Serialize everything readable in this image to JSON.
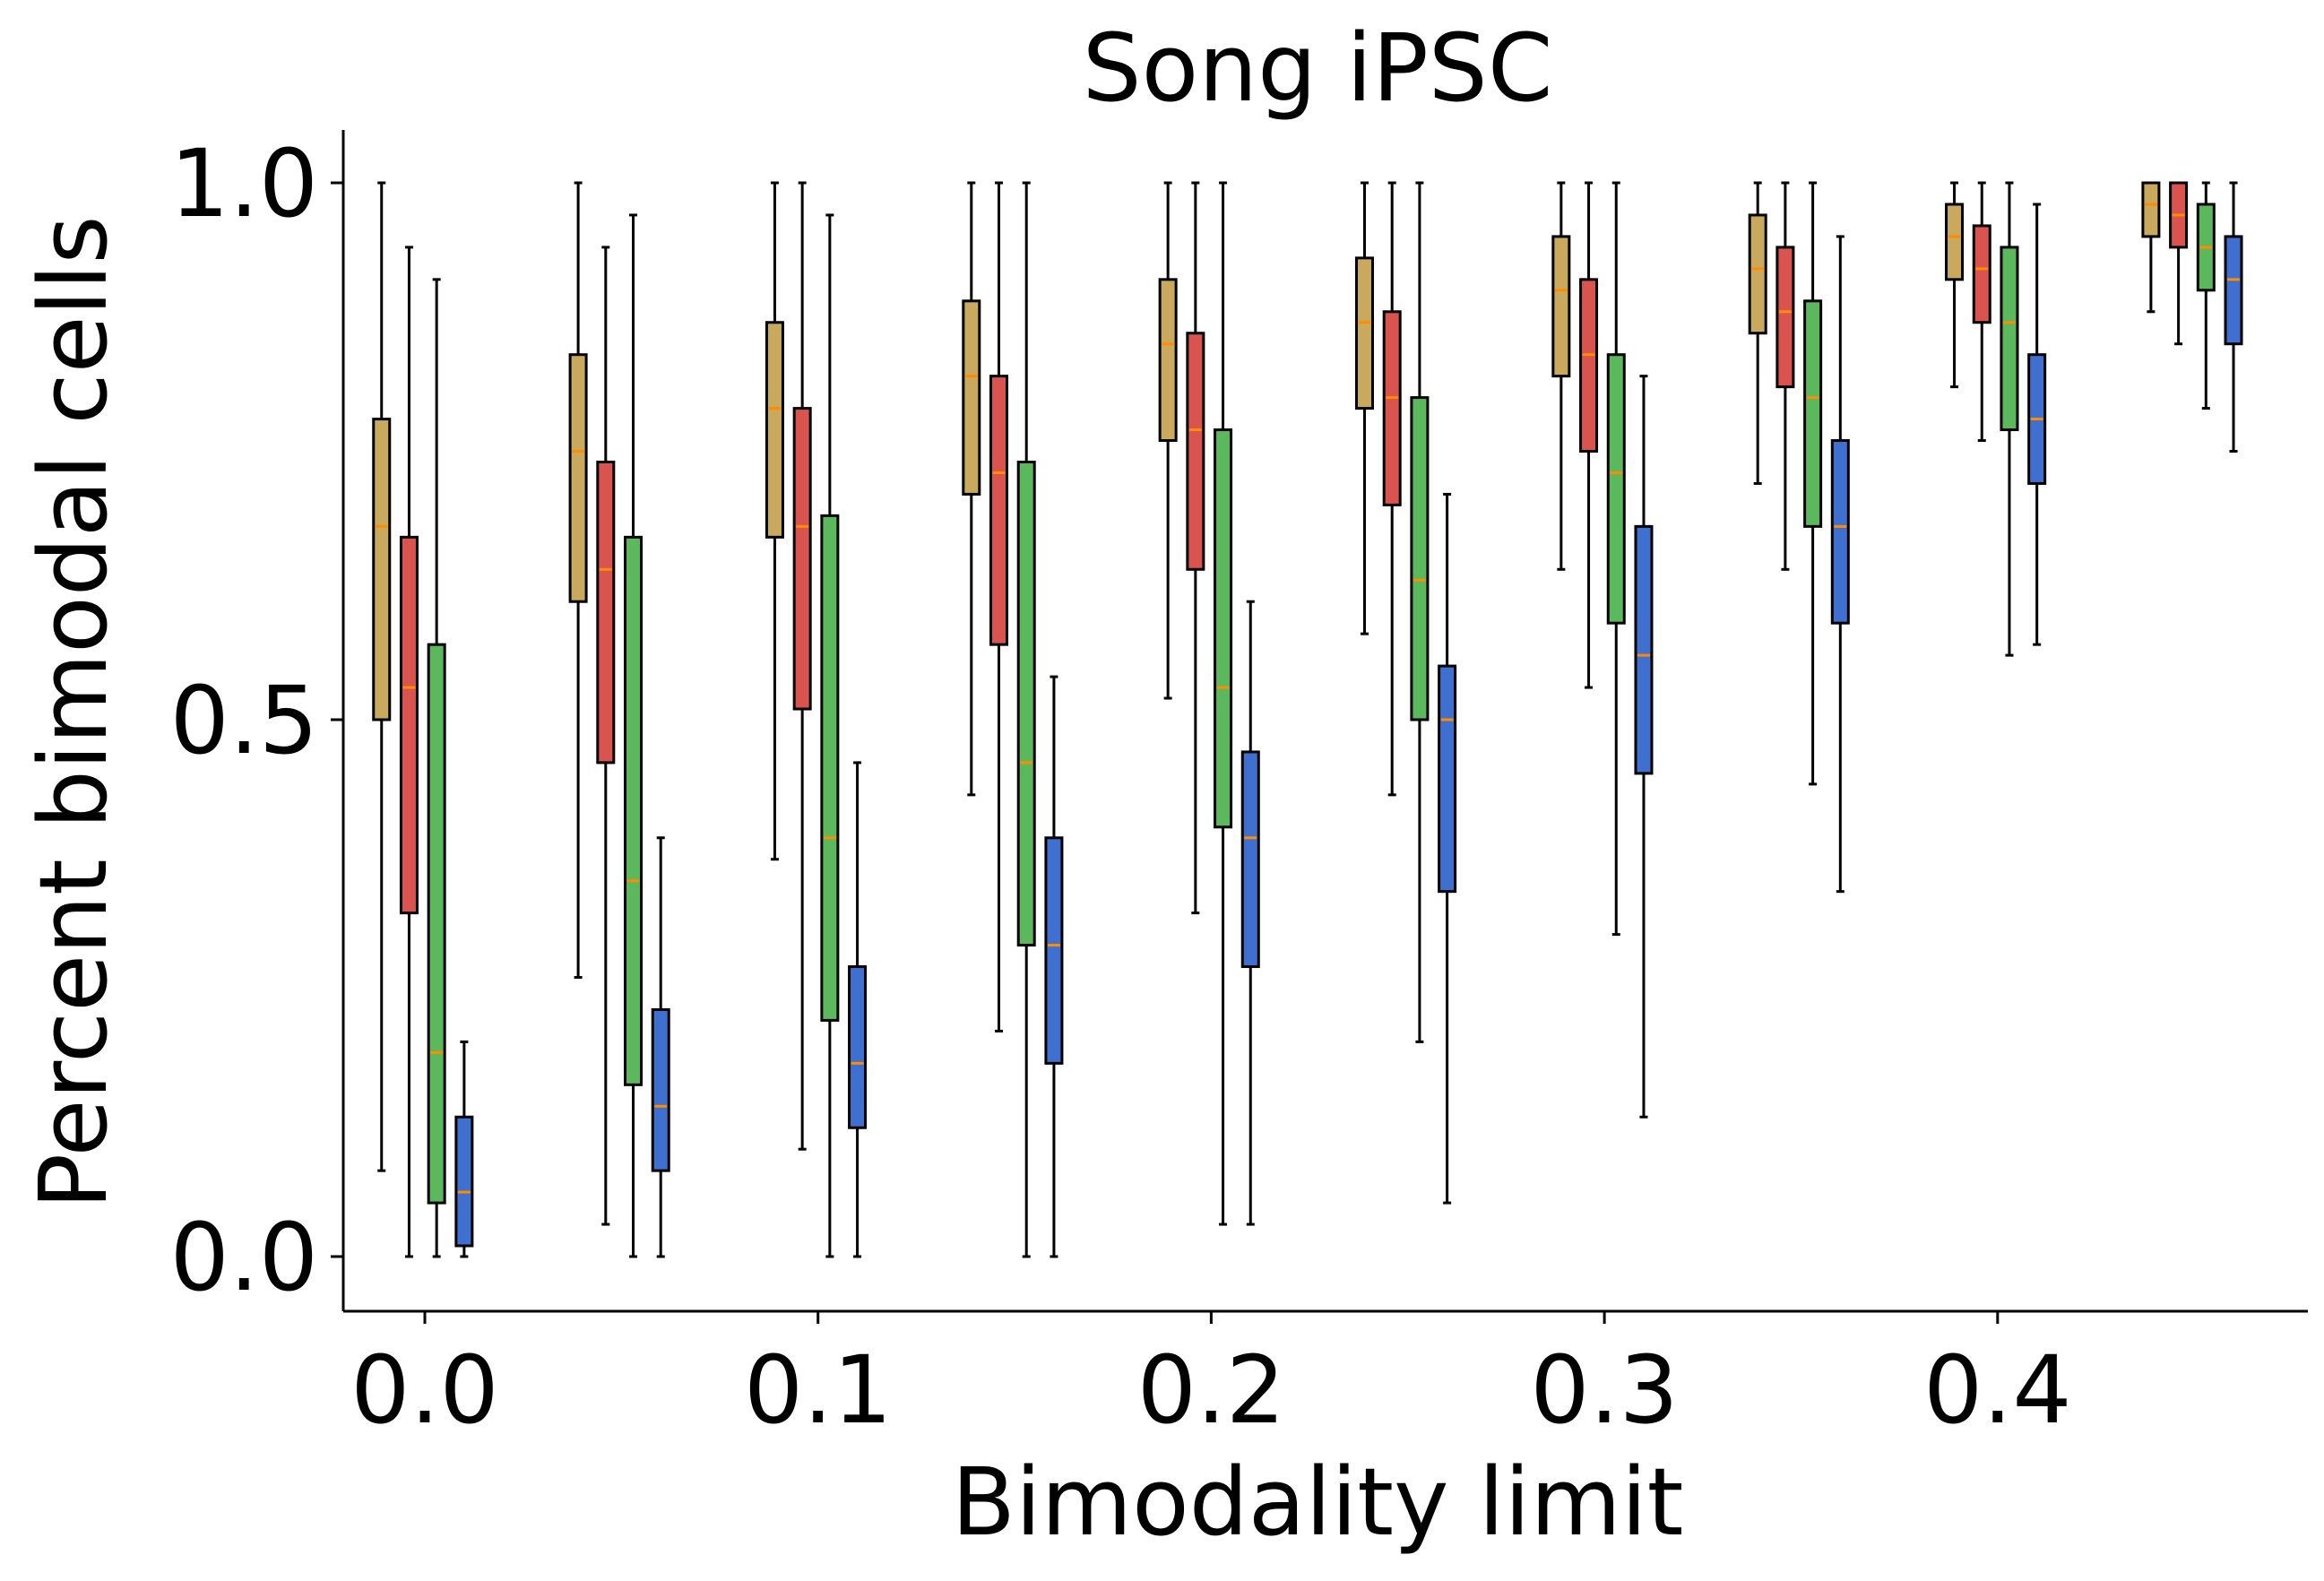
{
  "chart_data": {
    "type": "boxplot",
    "title": "Song iPSC",
    "xlabel": "Bimodality limit",
    "ylabel": "Percent bimodal cells",
    "xlim": [
      -0.021,
      0.479
    ],
    "ylim": [
      -0.05,
      1.05
    ],
    "x_ticks": [
      "0.0",
      "0.1",
      "0.2",
      "0.3",
      "0.4"
    ],
    "y_ticks": [
      "0.0",
      "0.5",
      "1.0"
    ],
    "grid": false,
    "legend": "none",
    "median_color": "#ff8c00",
    "series": [
      {
        "color": "#c8a95e",
        "boxes": [
          {
            "x": -0.011,
            "whislo": 0.08,
            "q1": 0.5,
            "med": 0.68,
            "q3": 0.78,
            "whishi": 1.0
          },
          {
            "x": 0.039,
            "whislo": 0.26,
            "q1": 0.61,
            "med": 0.75,
            "q3": 0.84,
            "whishi": 1.0
          },
          {
            "x": 0.089,
            "whislo": 0.37,
            "q1": 0.67,
            "med": 0.79,
            "q3": 0.87,
            "whishi": 1.0
          },
          {
            "x": 0.139,
            "whislo": 0.43,
            "q1": 0.71,
            "med": 0.82,
            "q3": 0.89,
            "whishi": 1.0
          },
          {
            "x": 0.189,
            "whislo": 0.52,
            "q1": 0.76,
            "med": 0.85,
            "q3": 0.91,
            "whishi": 1.0
          },
          {
            "x": 0.239,
            "whislo": 0.58,
            "q1": 0.79,
            "med": 0.87,
            "q3": 0.93,
            "whishi": 1.0
          },
          {
            "x": 0.289,
            "whislo": 0.64,
            "q1": 0.82,
            "med": 0.9,
            "q3": 0.95,
            "whishi": 1.0
          },
          {
            "x": 0.339,
            "whislo": 0.72,
            "q1": 0.86,
            "med": 0.92,
            "q3": 0.97,
            "whishi": 1.0
          },
          {
            "x": 0.389,
            "whislo": 0.81,
            "q1": 0.91,
            "med": 0.95,
            "q3": 0.98,
            "whishi": 1.0
          },
          {
            "x": 0.439,
            "whislo": 0.88,
            "q1": 0.95,
            "med": 0.98,
            "q3": 1.0,
            "whishi": 1.0
          }
        ]
      },
      {
        "color": "#d9534f",
        "boxes": [
          {
            "x": -0.004,
            "whislo": 0.0,
            "q1": 0.32,
            "med": 0.53,
            "q3": 0.67,
            "whishi": 0.94
          },
          {
            "x": 0.046,
            "whislo": 0.03,
            "q1": 0.46,
            "med": 0.64,
            "q3": 0.74,
            "whishi": 0.94
          },
          {
            "x": 0.096,
            "whislo": 0.1,
            "q1": 0.51,
            "med": 0.68,
            "q3": 0.79,
            "whishi": 1.0
          },
          {
            "x": 0.146,
            "whislo": 0.21,
            "q1": 0.57,
            "med": 0.73,
            "q3": 0.82,
            "whishi": 1.0
          },
          {
            "x": 0.196,
            "whislo": 0.32,
            "q1": 0.64,
            "med": 0.77,
            "q3": 0.86,
            "whishi": 1.0
          },
          {
            "x": 0.246,
            "whislo": 0.43,
            "q1": 0.7,
            "med": 0.8,
            "q3": 0.88,
            "whishi": 1.0
          },
          {
            "x": 0.296,
            "whislo": 0.53,
            "q1": 0.75,
            "med": 0.84,
            "q3": 0.91,
            "whishi": 1.0
          },
          {
            "x": 0.346,
            "whislo": 0.64,
            "q1": 0.81,
            "med": 0.88,
            "q3": 0.94,
            "whishi": 1.0
          },
          {
            "x": 0.396,
            "whislo": 0.76,
            "q1": 0.87,
            "med": 0.92,
            "q3": 0.96,
            "whishi": 1.0
          },
          {
            "x": 0.446,
            "whislo": 0.85,
            "q1": 0.94,
            "med": 0.97,
            "q3": 1.0,
            "whishi": 1.0
          }
        ]
      },
      {
        "color": "#5cb85c",
        "boxes": [
          {
            "x": 0.003,
            "whislo": 0.0,
            "q1": 0.05,
            "med": 0.19,
            "q3": 0.57,
            "whishi": 0.91
          },
          {
            "x": 0.053,
            "whislo": 0.0,
            "q1": 0.16,
            "med": 0.35,
            "q3": 0.67,
            "whishi": 0.97
          },
          {
            "x": 0.103,
            "whislo": 0.0,
            "q1": 0.22,
            "med": 0.39,
            "q3": 0.69,
            "whishi": 0.97
          },
          {
            "x": 0.153,
            "whislo": 0.0,
            "q1": 0.29,
            "med": 0.46,
            "q3": 0.74,
            "whishi": 1.0
          },
          {
            "x": 0.203,
            "whislo": 0.03,
            "q1": 0.4,
            "med": 0.53,
            "q3": 0.77,
            "whishi": 1.0
          },
          {
            "x": 0.253,
            "whislo": 0.2,
            "q1": 0.5,
            "med": 0.63,
            "q3": 0.8,
            "whishi": 1.0
          },
          {
            "x": 0.303,
            "whislo": 0.3,
            "q1": 0.59,
            "med": 0.73,
            "q3": 0.84,
            "whishi": 1.0
          },
          {
            "x": 0.353,
            "whislo": 0.44,
            "q1": 0.68,
            "med": 0.8,
            "q3": 0.89,
            "whishi": 1.0
          },
          {
            "x": 0.403,
            "whislo": 0.56,
            "q1": 0.77,
            "med": 0.87,
            "q3": 0.94,
            "whishi": 1.0
          },
          {
            "x": 0.453,
            "whislo": 0.79,
            "q1": 0.9,
            "med": 0.94,
            "q3": 0.98,
            "whishi": 1.0
          }
        ]
      },
      {
        "color": "#3f6fcf",
        "boxes": [
          {
            "x": 0.01,
            "whislo": 0.0,
            "q1": 0.01,
            "med": 0.06,
            "q3": 0.13,
            "whishi": 0.2
          },
          {
            "x": 0.06,
            "whislo": 0.0,
            "q1": 0.08,
            "med": 0.14,
            "q3": 0.23,
            "whishi": 0.39
          },
          {
            "x": 0.11,
            "whislo": 0.0,
            "q1": 0.12,
            "med": 0.18,
            "q3": 0.27,
            "whishi": 0.46
          },
          {
            "x": 0.16,
            "whislo": 0.0,
            "q1": 0.18,
            "med": 0.29,
            "q3": 0.39,
            "whishi": 0.54
          },
          {
            "x": 0.21,
            "whislo": 0.03,
            "q1": 0.27,
            "med": 0.39,
            "q3": 0.47,
            "whishi": 0.61
          },
          {
            "x": 0.26,
            "whislo": 0.05,
            "q1": 0.34,
            "med": 0.5,
            "q3": 0.55,
            "whishi": 0.71
          },
          {
            "x": 0.31,
            "whislo": 0.13,
            "q1": 0.45,
            "med": 0.56,
            "q3": 0.68,
            "whishi": 0.82
          },
          {
            "x": 0.36,
            "whislo": 0.34,
            "q1": 0.59,
            "med": 0.68,
            "q3": 0.76,
            "whishi": 0.95
          },
          {
            "x": 0.41,
            "whislo": 0.57,
            "q1": 0.72,
            "med": 0.78,
            "q3": 0.84,
            "whishi": 0.98
          },
          {
            "x": 0.46,
            "whislo": 0.75,
            "q1": 0.85,
            "med": 0.91,
            "q3": 0.95,
            "whishi": 1.0
          }
        ]
      }
    ]
  }
}
